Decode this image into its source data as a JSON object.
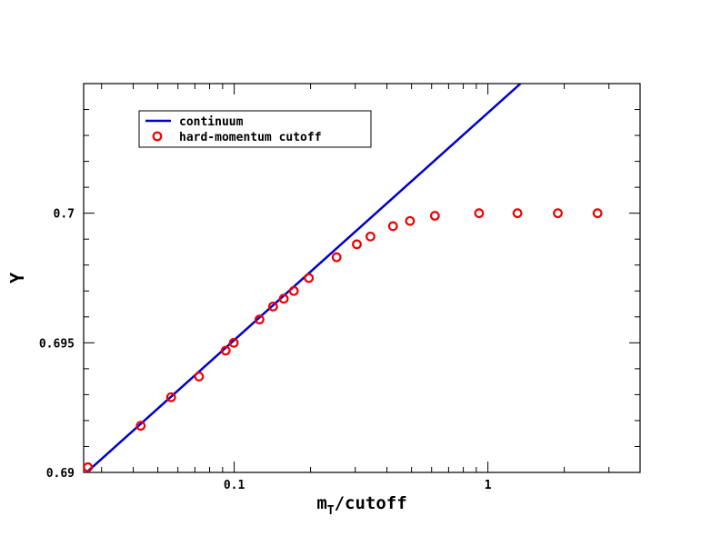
{
  "chart_data": {
    "type": "scatter",
    "title": "",
    "xlabel": {
      "main": "m",
      "sub": "T",
      "rest": "/cutoff"
    },
    "ylabel": "Y",
    "x_scale": "log",
    "xlim": [
      0.0255,
      3.98
    ],
    "ylim": [
      0.69,
      0.705
    ],
    "x_ticks": [
      0.1,
      1
    ],
    "x_tick_labels": [
      "0.1",
      "1"
    ],
    "y_ticks": [
      0.69,
      0.695,
      0.7
    ],
    "y_tick_labels": [
      "0.69",
      "0.695",
      "0.7"
    ],
    "grid": false,
    "legend_position": "top-left",
    "series": [
      {
        "name": "continuum",
        "kind": "line",
        "color": "#0000cc",
        "x": [
          0.0255,
          1.345
        ],
        "y": [
          0.6899,
          0.705
        ]
      },
      {
        "name": "hard-momentum cutoff",
        "kind": "marker",
        "marker": "open-circle",
        "color": "#ee0000",
        "x": [
          0.0265,
          0.0428,
          0.0564,
          0.0727,
          0.0926,
          0.0996,
          0.1258,
          0.1423,
          0.1568,
          0.1718,
          0.1969,
          0.2533,
          0.3044,
          0.3444,
          0.4227,
          0.4932,
          0.6181,
          0.9231,
          1.3079,
          1.8869,
          2.7051
        ],
        "y": [
          0.6902,
          0.6918,
          0.6929,
          0.6937,
          0.6947,
          0.695,
          0.6959,
          0.6964,
          0.6967,
          0.697,
          0.6975,
          0.6983,
          0.6988,
          0.6991,
          0.6995,
          0.6997,
          0.6999,
          0.7,
          0.7,
          0.7,
          0.7
        ]
      }
    ]
  }
}
